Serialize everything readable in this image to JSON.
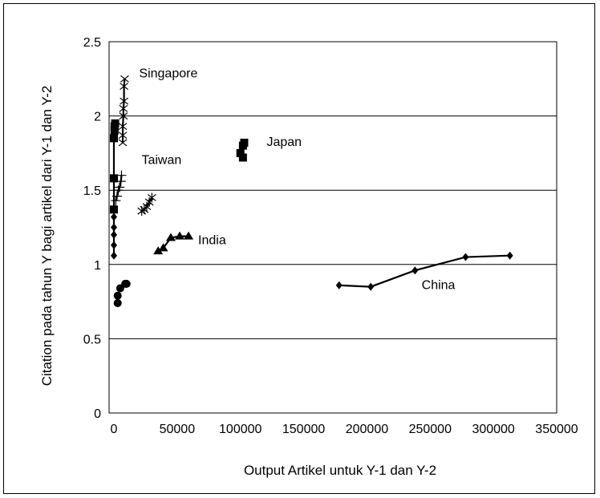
{
  "chart_data": {
    "type": "scatter",
    "title": "",
    "xlabel": "Output Artikel untuk Y-1 dan Y-2",
    "ylabel": "Citation pada tahun Y bagi artikel dari Y-1 dan Y-2",
    "xlim": [
      0,
      350000
    ],
    "ylim": [
      0,
      2.5
    ],
    "xticks": [
      "0",
      "50000",
      "100000",
      "150000",
      "200000",
      "250000",
      "300000",
      "350000"
    ],
    "yticks": [
      "0",
      "0.5",
      "1",
      "1.5",
      "2",
      "2.5"
    ],
    "grid": "horizontal",
    "legend": "none",
    "series": [
      {
        "name": "Singapore",
        "marker": "x",
        "connected": true,
        "x": [
          7000,
          7000,
          7000,
          7500,
          7500,
          8000,
          8000,
          8500
        ],
        "y": [
          1.82,
          1.87,
          1.93,
          2.0,
          2.05,
          2.1,
          2.2,
          2.25
        ]
      },
      {
        "name": "Japan",
        "marker": "square",
        "connected": true,
        "x": [
          100000,
          102000,
          102000,
          103000
        ],
        "y": [
          1.75,
          1.72,
          1.8,
          1.82
        ]
      },
      {
        "name": "Taiwan",
        "marker": "plus",
        "connected": true,
        "x": [
          1500,
          2500,
          3500,
          4500,
          5500,
          6000
        ],
        "y": [
          1.43,
          1.46,
          1.5,
          1.52,
          1.56,
          1.6
        ]
      },
      {
        "name": "",
        "marker": "star",
        "connected": true,
        "x": [
          22000,
          24000,
          26000,
          28000,
          30000
        ],
        "y": [
          1.36,
          1.37,
          1.39,
          1.42,
          1.45
        ]
      },
      {
        "name": "",
        "marker": "square",
        "connected": true,
        "x": [
          0,
          0,
          0,
          500,
          500,
          1000
        ],
        "y": [
          1.37,
          1.58,
          1.85,
          1.9,
          1.93,
          1.95
        ]
      },
      {
        "name": "India",
        "marker": "triangle",
        "connected": true,
        "x": [
          35000,
          39000,
          45000,
          52000,
          59000
        ],
        "y": [
          1.09,
          1.11,
          1.18,
          1.19,
          1.19
        ]
      },
      {
        "name": "",
        "marker": "diamond",
        "connected": true,
        "x": [
          0,
          0,
          0,
          0,
          0
        ],
        "y": [
          1.06,
          1.13,
          1.2,
          1.25,
          1.32
        ]
      },
      {
        "name": "",
        "marker": "circle",
        "connected": false,
        "x": [
          3000,
          3000,
          5000,
          9000,
          10000
        ],
        "y": [
          0.74,
          0.79,
          0.84,
          0.87,
          0.87
        ]
      },
      {
        "name": "China",
        "marker": "diamond",
        "connected": true,
        "x": [
          178000,
          203000,
          238000,
          278000,
          313000
        ],
        "y": [
          0.86,
          0.85,
          0.96,
          1.05,
          1.06
        ]
      }
    ]
  }
}
